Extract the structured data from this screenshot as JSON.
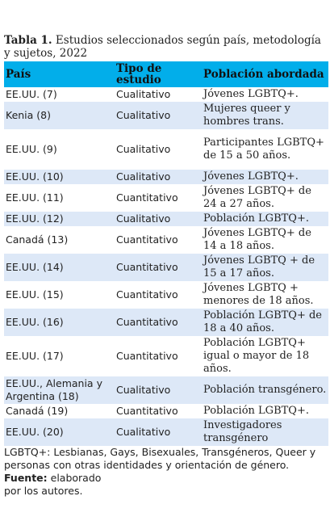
{
  "caption": {
    "label": "Tabla 1.",
    "text": "Estudios seleccionados según país, metodología y sujetos, 2022"
  },
  "table": {
    "headers": [
      "País",
      "Tipo de estudio",
      "Población abordada"
    ],
    "rows": [
      {
        "pais": "EE.UU. (7)",
        "tipo": "Cualitativo",
        "poblacion": "Jóvenes LGBTQ+."
      },
      {
        "pais": "Kenia (8)",
        "tipo": "Cualitativo",
        "poblacion": "Mujeres queer y hombres trans."
      },
      {
        "pais": "EE.UU. (9)",
        "tipo": "Cualitativo",
        "poblacion": "Participantes LGBTQ+ de 15 a 50 años."
      },
      {
        "pais": "EE.UU. (10)",
        "tipo": "Cualitativo",
        "poblacion": "Jóvenes LGBTQ+."
      },
      {
        "pais": "EE.UU. (11)",
        "tipo": "Cuantitativo",
        "poblacion": "Jóvenes LGBTQ+ de 24 a 27 años."
      },
      {
        "pais": "EE.UU. (12)",
        "tipo": "Cualitativo",
        "poblacion": "Población LGBTQ+."
      },
      {
        "pais": "Canadá (13)",
        "tipo": "Cuantitativo",
        "poblacion": "Jóvenes LGBTQ+ de 14 a 18 años."
      },
      {
        "pais": "EE.UU. (14)",
        "tipo": "Cuantitativo",
        "poblacion": "Jóvenes LGBTQ + de 15 a 17 años."
      },
      {
        "pais": "EE.UU. (15)",
        "tipo": "Cuantitativo",
        "poblacion": "Jóvenes LGBTQ + menores de 18 años."
      },
      {
        "pais": "EE.UU. (16)",
        "tipo": "Cuantitativo",
        "poblacion": "Población LGBTQ+ de 18 a 40 años."
      },
      {
        "pais": "EE.UU. (17)",
        "tipo": "Cuantitativo",
        "poblacion": "Población LGBTQ+ igual o mayor de 18 años."
      },
      {
        "pais": "EE.UU., Alemania y Argentina (18)",
        "tipo": "Cualitativo",
        "poblacion": "Población transgénero."
      },
      {
        "pais": "Canadá (19)",
        "tipo": "Cuantitativo",
        "poblacion": "Población LGBTQ+."
      },
      {
        "pais": "EE.UU. (20)",
        "tipo": "Cualitativo",
        "poblacion": "Investigadores transgénero"
      }
    ]
  },
  "note": "LGBTQ+: Lesbianas, Gays, Bisexuales, Transgéneros, Queer y personas con otras identidades y orientación de género.",
  "source": {
    "label": "Fuente:",
    "text": "elaborado por los autores."
  },
  "colors": {
    "header_bg": "#02aeea",
    "stripe_bg": "#dde8f7"
  }
}
